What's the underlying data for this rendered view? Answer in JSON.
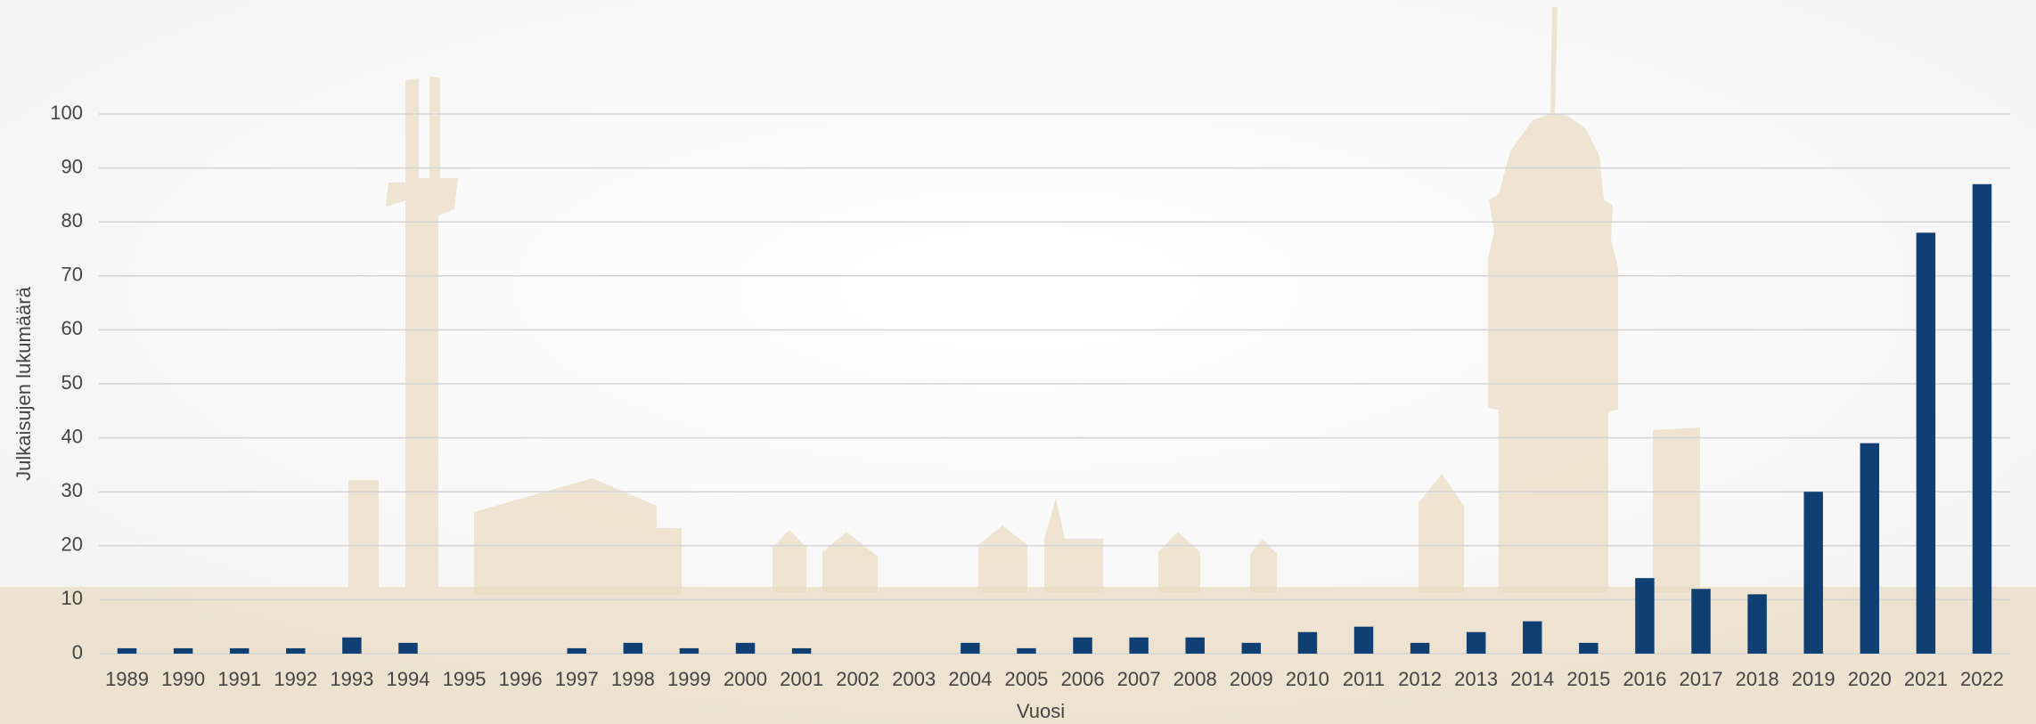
{
  "chart_data": {
    "type": "bar",
    "x_label": "Vuosi",
    "y_label": "Julkaisujen lukumäärä",
    "categories": [
      "1989",
      "1990",
      "1991",
      "1992",
      "1993",
      "1994",
      "1995",
      "1996",
      "1997",
      "1998",
      "1999",
      "2000",
      "2001",
      "2002",
      "2003",
      "2004",
      "2005",
      "2006",
      "2007",
      "2008",
      "2009",
      "2010",
      "2011",
      "2012",
      "2013",
      "2014",
      "2015",
      "2016",
      "2017",
      "2018",
      "2019",
      "2020",
      "2021",
      "2022"
    ],
    "values": [
      1,
      1,
      1,
      1,
      3,
      2,
      0,
      0,
      1,
      2,
      1,
      2,
      1,
      0,
      0,
      2,
      1,
      3,
      3,
      3,
      2,
      4,
      5,
      2,
      4,
      6,
      2,
      14,
      12,
      11,
      30,
      39,
      78,
      87
    ],
    "color": "#0f3f73",
    "ylim": [
      0,
      100
    ],
    "yticks": [
      0,
      10,
      20,
      30,
      40,
      50,
      60,
      70,
      80,
      90,
      100
    ],
    "grid": true
  }
}
